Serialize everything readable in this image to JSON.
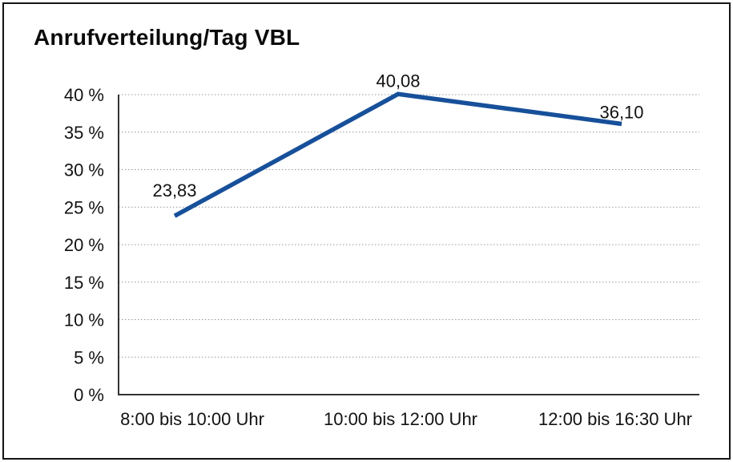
{
  "chart_data": {
    "type": "line",
    "title": "Anrufverteilung/Tag VBL",
    "categories": [
      "8:00 bis 10:00 Uhr",
      "10:00 bis 12:00 Uhr",
      "12:00 bis 16:30 Uhr"
    ],
    "series": [
      {
        "name": "Anrufverteilung",
        "values": [
          23.83,
          40.08,
          36.1
        ],
        "data_labels": [
          "23,83",
          "40,08",
          "36,10"
        ],
        "color": "#17509A"
      }
    ],
    "xlabel": "",
    "ylabel": "",
    "ylim": [
      0,
      40
    ],
    "ytick_step": 5,
    "ytick_labels": [
      "0 %",
      "5 %",
      "10 %",
      "15 %",
      "20 %",
      "25 %",
      "30 %",
      "35 %",
      "40 %"
    ],
    "grid": "horizontal-dotted",
    "legend_position": "none",
    "colors": {
      "line": "#17509A",
      "grid": "#999999",
      "axis": "#333333",
      "text": "#121212",
      "frame_border": "#141414",
      "background": "#ffffff"
    }
  }
}
